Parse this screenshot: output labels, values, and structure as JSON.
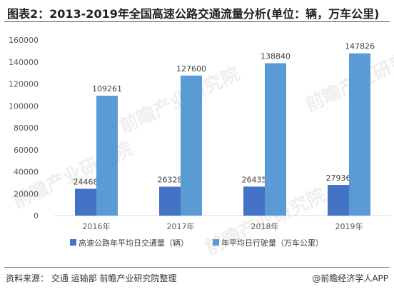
{
  "title": "图表2：2013-2019年全国高速公路交通流量分析(单位：辆，万车公里)",
  "footer": {
    "source": "资料来源：  交通 运输部  前瞻产业研究院整理",
    "brand": "@前瞻经济学人APP"
  },
  "watermark": "前瞻产业研究院",
  "chart_data": {
    "type": "bar",
    "categories": [
      "2016年",
      "2017年",
      "2018年",
      "2019年"
    ],
    "ylim": [
      0,
      160000
    ],
    "yticks": [
      0,
      20000,
      40000,
      60000,
      80000,
      100000,
      120000,
      140000,
      160000
    ],
    "grid": false,
    "legend_position": "bottom",
    "series": [
      {
        "name": "高速公路年平均日交通量（辆）",
        "color": "#4472C4",
        "values": [
          24468,
          26328,
          26435,
          27936
        ]
      },
      {
        "name": "年平均日行驶量（万车公里）",
        "color": "#5B9BD5",
        "values": [
          109261,
          127600,
          138840,
          147826
        ]
      }
    ]
  }
}
